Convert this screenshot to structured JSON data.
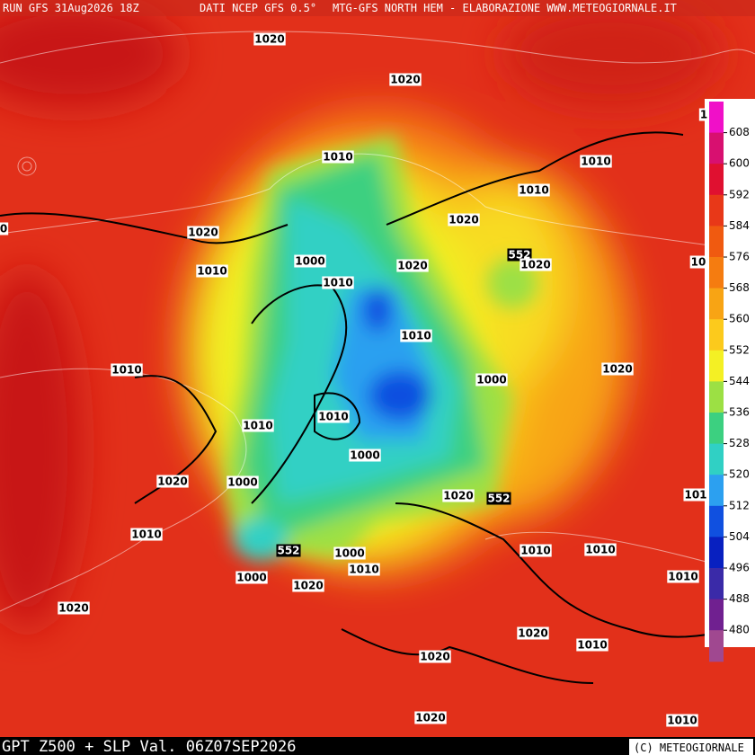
{
  "header": {
    "run": "RUN GFS 31Aug2026 18Z",
    "source": "DATI NCEP GFS 0.5°",
    "credit": "MTG-GFS NORTH HEM - ELABORAZIONE WWW.METEOGIORNALE.IT"
  },
  "footer": {
    "title": "GPT Z500 + SLP Val. 06Z07SEP2026",
    "copyright": "(C) METEOGIORNALE"
  },
  "colorbar": {
    "labels": [
      608,
      600,
      592,
      584,
      576,
      568,
      560,
      552,
      544,
      536,
      528,
      520,
      512,
      504,
      496,
      488,
      480
    ],
    "colors": [
      "#f010c8",
      "#d81070",
      "#e01030",
      "#e83818",
      "#f05a10",
      "#f57c10",
      "#f8a414",
      "#fcca1c",
      "#f4f024",
      "#9ce044",
      "#3cd080",
      "#30d0c4",
      "#2ca0f0",
      "#1050e0",
      "#0820c0",
      "#3a2aa8",
      "#702090",
      "#a04890"
    ]
  },
  "map": {
    "labels": [
      "1020",
      "1020",
      "1010",
      "1010",
      "1010",
      "1020",
      "1020",
      "552",
      "1020",
      "1000",
      "1010",
      "1020",
      "1010",
      "1010",
      "1010",
      "1020",
      "1000",
      "1010",
      "1010",
      "1000",
      "1020",
      "1000",
      "1020",
      "552",
      "1010",
      "552",
      "1000",
      "1010",
      "1010",
      "1010",
      "1000",
      "1020",
      "1010",
      "1020",
      "1020",
      "1010",
      "1020",
      "1020",
      "1010",
      "0",
      "10",
      "101",
      "1"
    ]
  }
}
